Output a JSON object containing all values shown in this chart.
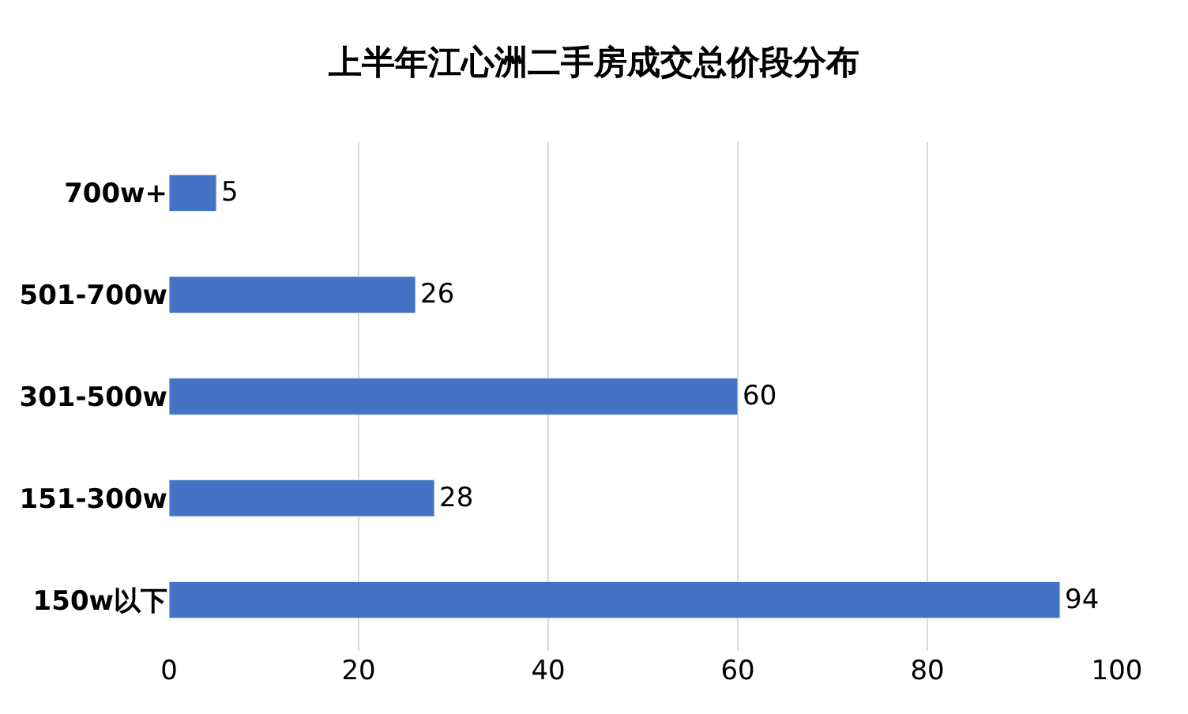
{
  "chart_data": {
    "type": "bar",
    "title": "上半年江心洲二手房成交总价段分布",
    "orientation": "horizontal",
    "categories": [
      "700w+",
      "501-700w",
      "301-500w",
      "151-300w",
      "150w以下"
    ],
    "values": [
      5,
      26,
      60,
      28,
      94
    ],
    "color": "#4472c4",
    "xlim": [
      0,
      100
    ],
    "xticks": [
      0,
      20,
      40,
      60,
      80,
      100
    ],
    "grid": "x",
    "data_labels": true,
    "legend": false
  }
}
